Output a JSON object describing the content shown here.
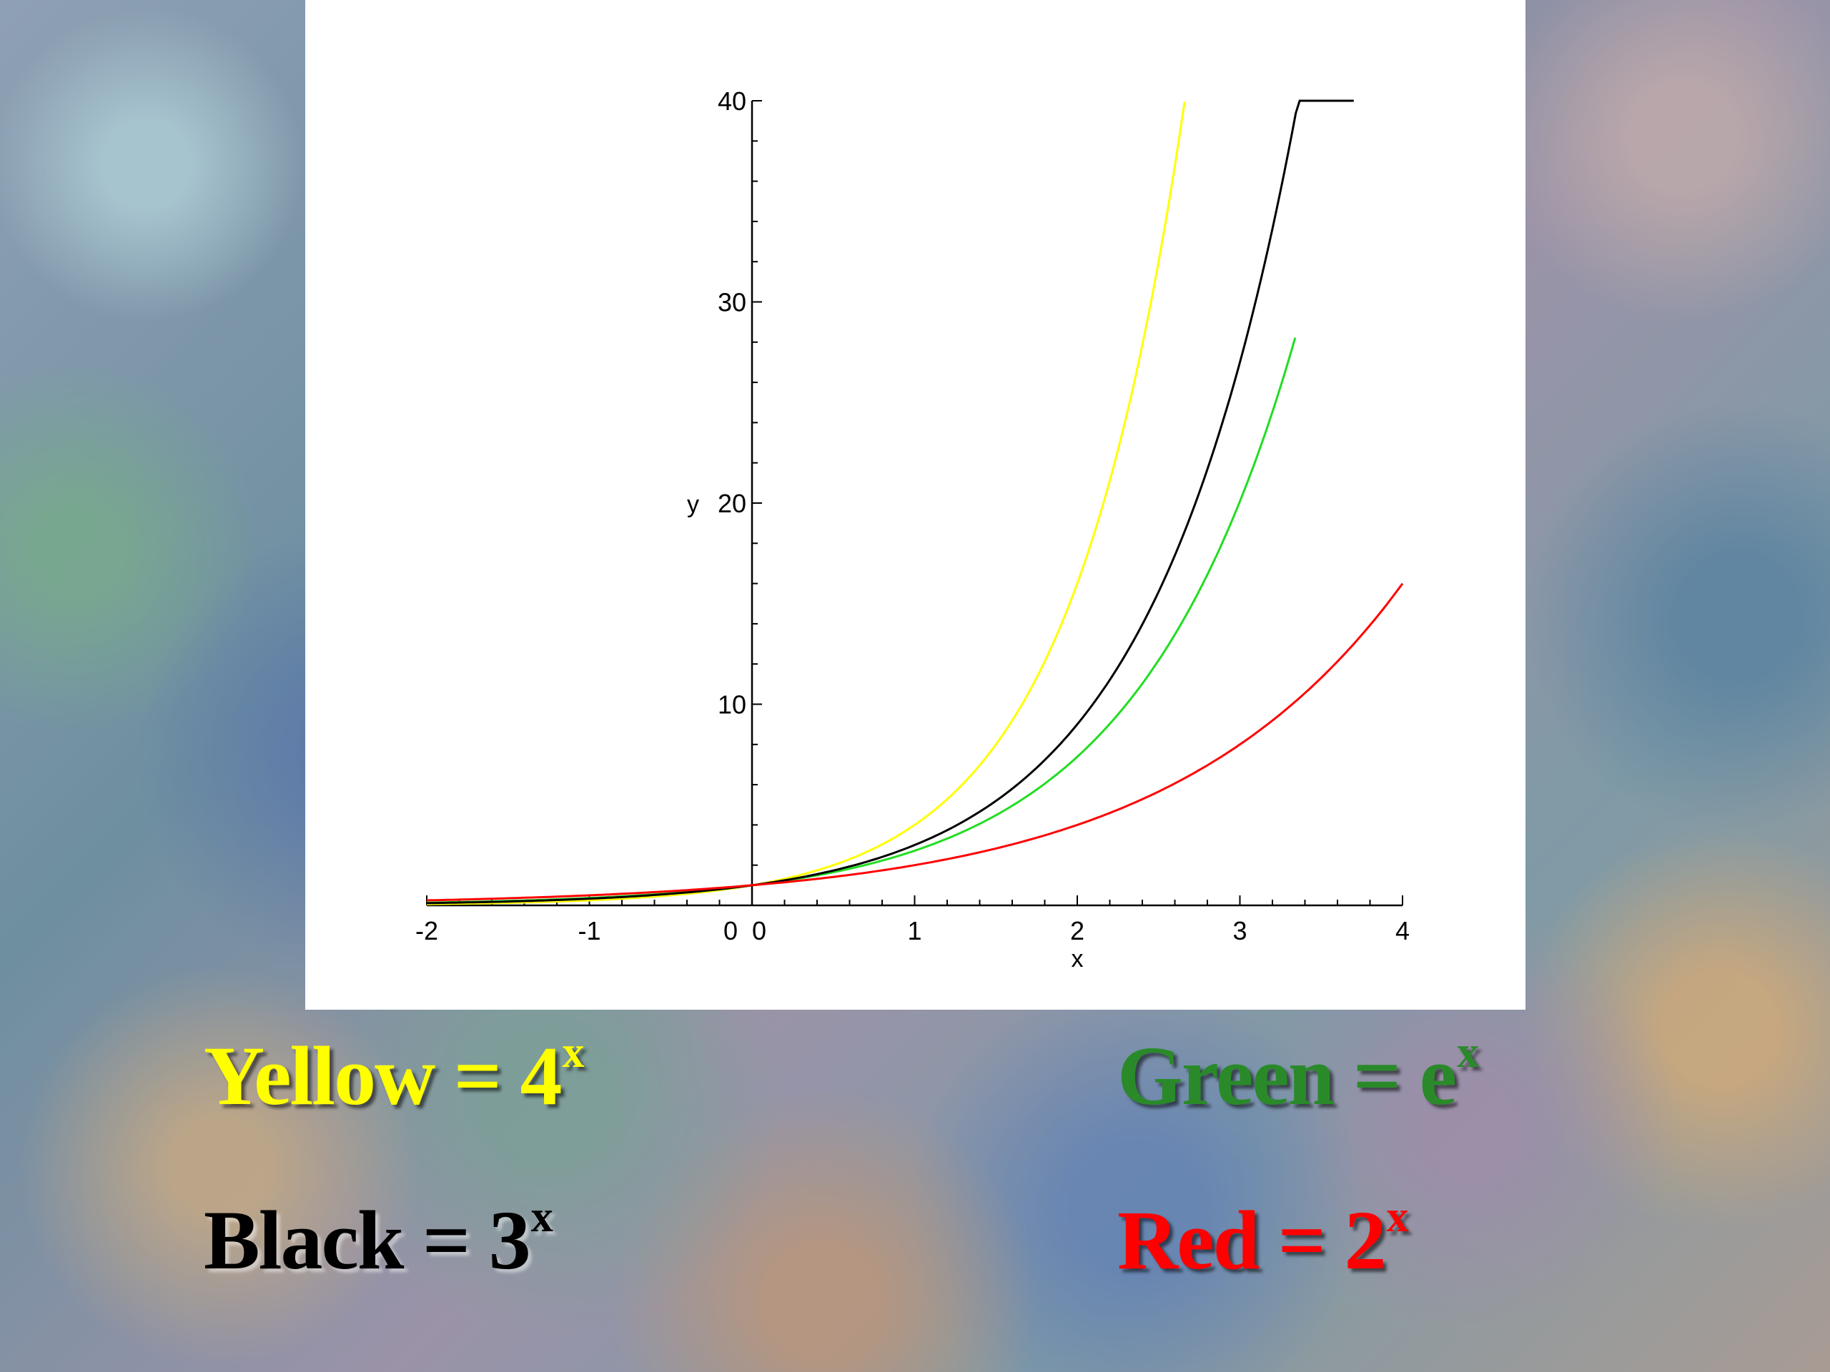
{
  "chart_data": {
    "type": "line",
    "title": "",
    "xlabel": "x",
    "ylabel": "y",
    "xlim": [
      -2,
      4
    ],
    "ylim": [
      0,
      40
    ],
    "x_ticks": [
      "-2",
      "-1",
      "0",
      "0",
      "1",
      "2",
      "3",
      "4"
    ],
    "y_ticks": [
      "10",
      "20",
      "30",
      "40"
    ],
    "grid": false,
    "series": [
      {
        "name": "Yellow = 4^x",
        "color": "#ffff00",
        "function": "4^x",
        "x": [
          -2,
          -1,
          0,
          0.5,
          1,
          1.5,
          2,
          2.25,
          2.5,
          2.66
        ],
        "y": [
          0.06,
          0.25,
          1,
          2,
          4,
          8,
          16,
          22.6,
          32,
          40
        ]
      },
      {
        "name": "Green = e^x",
        "color": "#22dd22",
        "function": "e^x",
        "x": [
          -2,
          -1,
          0,
          0.5,
          1,
          1.5,
          2,
          2.5,
          3,
          3.2,
          3.34
        ],
        "y": [
          0.14,
          0.37,
          1,
          1.65,
          2.72,
          4.48,
          7.39,
          12.18,
          20.09,
          24.53,
          28.2
        ]
      },
      {
        "name": "Black = 3^x",
        "color": "#000000",
        "function": "3^x",
        "x": [
          -2,
          -1,
          0,
          0.5,
          1,
          1.5,
          2,
          2.5,
          3,
          3.3,
          3.7
        ],
        "y": [
          0.11,
          0.33,
          1,
          1.73,
          3,
          5.2,
          9,
          15.59,
          27,
          37.6,
          40
        ]
      },
      {
        "name": "Red = 2^x",
        "color": "#ff0000",
        "function": "2^x",
        "x": [
          -2,
          -1,
          0,
          0.5,
          1,
          1.5,
          2,
          2.5,
          3,
          3.5,
          4
        ],
        "y": [
          0.25,
          0.5,
          1,
          1.41,
          2,
          2.83,
          4,
          5.66,
          8,
          11.31,
          16
        ]
      }
    ]
  },
  "legend": {
    "yellow": {
      "text": "Yellow = 4",
      "sup": "x",
      "color": "#ffff00"
    },
    "green": {
      "text": "Green = e",
      "sup": "x",
      "color": "#2a8a2a"
    },
    "black": {
      "text": "Black = 3",
      "sup": "x",
      "color": "#000000"
    },
    "red": {
      "text": "Red = 2",
      "sup": "x",
      "color": "#ff0000"
    }
  }
}
